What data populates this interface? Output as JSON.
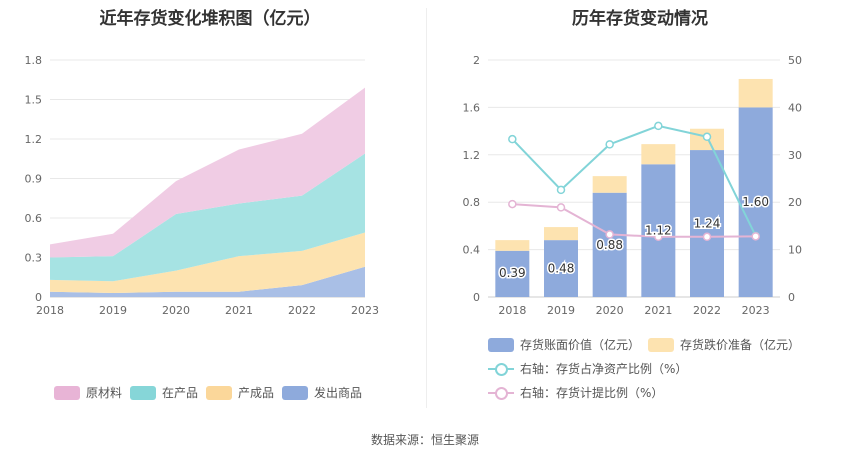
{
  "left_title": "近年存货变化堆积图（亿元）",
  "right_title": "历年存货变动情况",
  "source": "数据来源：恒生聚源",
  "chart_data": [
    {
      "type": "area",
      "stacked": true,
      "title": "近年存货变化堆积图（亿元）",
      "x": [
        "2018",
        "2019",
        "2020",
        "2021",
        "2022",
        "2023"
      ],
      "ylim": [
        0,
        1.8
      ],
      "yticks": [
        "0",
        "0.3",
        "0.6",
        "0.9",
        "1.2",
        "1.5",
        "1.8"
      ],
      "grid": true,
      "legend_position": "bottom",
      "series": [
        {
          "name": "发出商品",
          "color": "#a9bfe6",
          "legend_color": "#8eaadc",
          "values": [
            0.04,
            0.03,
            0.04,
            0.04,
            0.09,
            0.23
          ]
        },
        {
          "name": "产成品",
          "color": "#fde3b0",
          "legend_color": "#fbd79a",
          "values": [
            0.09,
            0.09,
            0.16,
            0.27,
            0.26,
            0.26
          ]
        },
        {
          "name": "在产品",
          "color": "#a6e3e3",
          "legend_color": "#86d6d8",
          "values": [
            0.17,
            0.19,
            0.43,
            0.4,
            0.42,
            0.6
          ]
        },
        {
          "name": "原材料",
          "color": "#f0cce4",
          "legend_color": "#e8b4d6",
          "values": [
            0.1,
            0.17,
            0.25,
            0.41,
            0.47,
            0.5
          ]
        }
      ]
    },
    {
      "type": "bar",
      "stacked": true,
      "title": "历年存货变动情况",
      "categories": [
        "2018",
        "2019",
        "2020",
        "2021",
        "2022",
        "2023"
      ],
      "ylim_left": [
        0,
        2
      ],
      "yticks_left": [
        "0",
        "0.4",
        "0.8",
        "1.2",
        "1.6",
        "2"
      ],
      "ylim_right": [
        0,
        50
      ],
      "yticks_right": [
        "0",
        "10",
        "20",
        "30",
        "40",
        "50"
      ],
      "grid": true,
      "legend_position": "bottom",
      "bar_series": [
        {
          "name": "存货账面价值（亿元）",
          "color": "#8eaadc",
          "values": [
            0.39,
            0.48,
            0.88,
            1.12,
            1.24,
            1.6
          ],
          "labels": [
            "0.39",
            "0.48",
            "0.88",
            "1.12",
            "1.24",
            "1.60"
          ]
        },
        {
          "name": "存货跌价准备（亿元）",
          "color": "#fde3b0",
          "values": [
            0.09,
            0.11,
            0.14,
            0.17,
            0.18,
            0.24
          ]
        }
      ],
      "line_series": [
        {
          "name": "右轴：存货占净资产比例（%）",
          "color": "#82d4d8",
          "values": [
            33.3,
            22.6,
            32.2,
            36.1,
            33.8,
            12.9
          ]
        },
        {
          "name": "右轴：存货计提比例（%）",
          "color": "#e4b4d4",
          "values": [
            19.6,
            18.9,
            13.2,
            12.7,
            12.7,
            12.8
          ]
        }
      ]
    }
  ]
}
